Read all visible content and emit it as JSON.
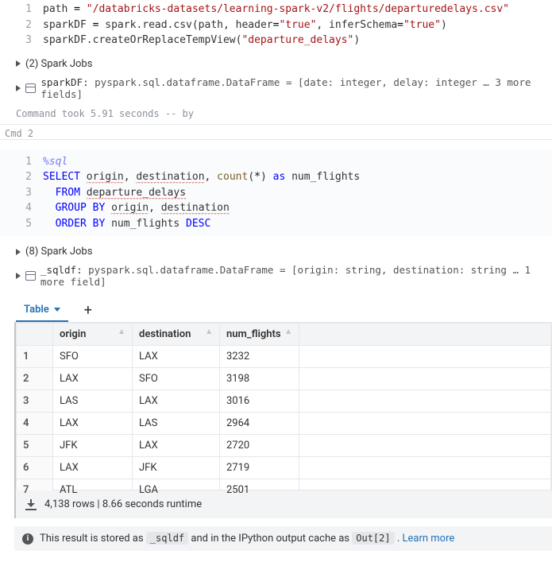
{
  "cell1": {
    "lines": [
      {
        "n": 1,
        "tokens": [
          {
            "t": "path ",
            "c": ""
          },
          {
            "t": "=",
            "c": "tk-eq"
          },
          {
            "t": " ",
            "c": ""
          },
          {
            "t": "\"/databricks-datasets/learning-spark-v2/flights/departuredelays.csv\"",
            "c": "tk-str"
          }
        ]
      },
      {
        "n": 2,
        "tokens": [
          {
            "t": "sparkDF ",
            "c": ""
          },
          {
            "t": "=",
            "c": "tk-eq"
          },
          {
            "t": " spark.read.csv(path, header",
            "c": ""
          },
          {
            "t": "=",
            "c": "tk-eq"
          },
          {
            "t": "\"true\"",
            "c": "tk-str"
          },
          {
            "t": ", inferSchema",
            "c": ""
          },
          {
            "t": "=",
            "c": "tk-eq"
          },
          {
            "t": "\"true\"",
            "c": "tk-str"
          },
          {
            "t": ")",
            "c": ""
          }
        ]
      },
      {
        "n": 3,
        "tokens": [
          {
            "t": "sparkDF.createOrReplaceTempView(",
            "c": ""
          },
          {
            "t": "\"departure_delays\"",
            "c": "tk-str"
          },
          {
            "t": ")",
            "c": ""
          }
        ]
      }
    ],
    "jobs_label": "(2) Spark Jobs",
    "schema_prefix": "sparkDF: ",
    "schema_text": "pyspark.sql.dataframe.DataFrame = [date: integer, delay: integer … 3 more fields]",
    "meta": "Command took 5.91 seconds -- by "
  },
  "cmd2_label": "Cmd 2",
  "cell2": {
    "lines": [
      {
        "n": 1,
        "tokens": [
          {
            "t": "%sql",
            "c": "tk-magic"
          }
        ]
      },
      {
        "n": 2,
        "tokens": [
          {
            "t": "SELECT",
            "c": "sql-kw"
          },
          {
            "t": " ",
            "c": ""
          },
          {
            "t": "origin",
            "c": "squig"
          },
          {
            "t": ", ",
            "c": ""
          },
          {
            "t": "destination",
            "c": "squig"
          },
          {
            "t": ", ",
            "c": ""
          },
          {
            "t": "count",
            "c": "sql-fn"
          },
          {
            "t": "(",
            "c": ""
          },
          {
            "t": "*",
            "c": "sql-star"
          },
          {
            "t": ") ",
            "c": ""
          },
          {
            "t": "as",
            "c": "sql-kw"
          },
          {
            "t": " num_flights",
            "c": ""
          }
        ]
      },
      {
        "n": 3,
        "tokens": [
          {
            "t": "  ",
            "c": ""
          },
          {
            "t": "FROM",
            "c": "sql-kw"
          },
          {
            "t": " ",
            "c": ""
          },
          {
            "t": "departure_delays",
            "c": "squig"
          }
        ]
      },
      {
        "n": 4,
        "tokens": [
          {
            "t": "  ",
            "c": ""
          },
          {
            "t": "GROUP BY",
            "c": "sql-kw"
          },
          {
            "t": " ",
            "c": ""
          },
          {
            "t": "origin",
            "c": "squig"
          },
          {
            "t": ", ",
            "c": ""
          },
          {
            "t": "destination",
            "c": "squig"
          }
        ]
      },
      {
        "n": 5,
        "tokens": [
          {
            "t": "  ",
            "c": ""
          },
          {
            "t": "ORDER BY",
            "c": "sql-kw"
          },
          {
            "t": " num_flights ",
            "c": ""
          },
          {
            "t": "DESC",
            "c": "sql-kw"
          }
        ]
      }
    ],
    "jobs_label": "(8) Spark Jobs",
    "schema_prefix": "_sqldf: ",
    "schema_text": "pyspark.sql.dataframe.DataFrame = [origin: string, destination: string … 1 more field]"
  },
  "results": {
    "tab_label": "Table",
    "columns": [
      "origin",
      "destination",
      "num_flights"
    ],
    "rows": [
      [
        "SFO",
        "LAX",
        "3232"
      ],
      [
        "LAX",
        "SFO",
        "3198"
      ],
      [
        "LAS",
        "LAX",
        "3016"
      ],
      [
        "LAX",
        "LAS",
        "2964"
      ],
      [
        "JFK",
        "LAX",
        "2720"
      ],
      [
        "LAX",
        "JFK",
        "2719"
      ],
      [
        "ATL",
        "LGA",
        "2501"
      ]
    ],
    "footer_rows": "4,138 rows",
    "footer_sep": "  |  ",
    "footer_runtime": "8.66 seconds runtime"
  },
  "info": {
    "pre": "This result is stored as ",
    "var1": "_sqldf",
    "mid": " and in the IPython output cache as ",
    "var2": "Out[2]",
    "post": " . ",
    "link": "Learn more"
  }
}
